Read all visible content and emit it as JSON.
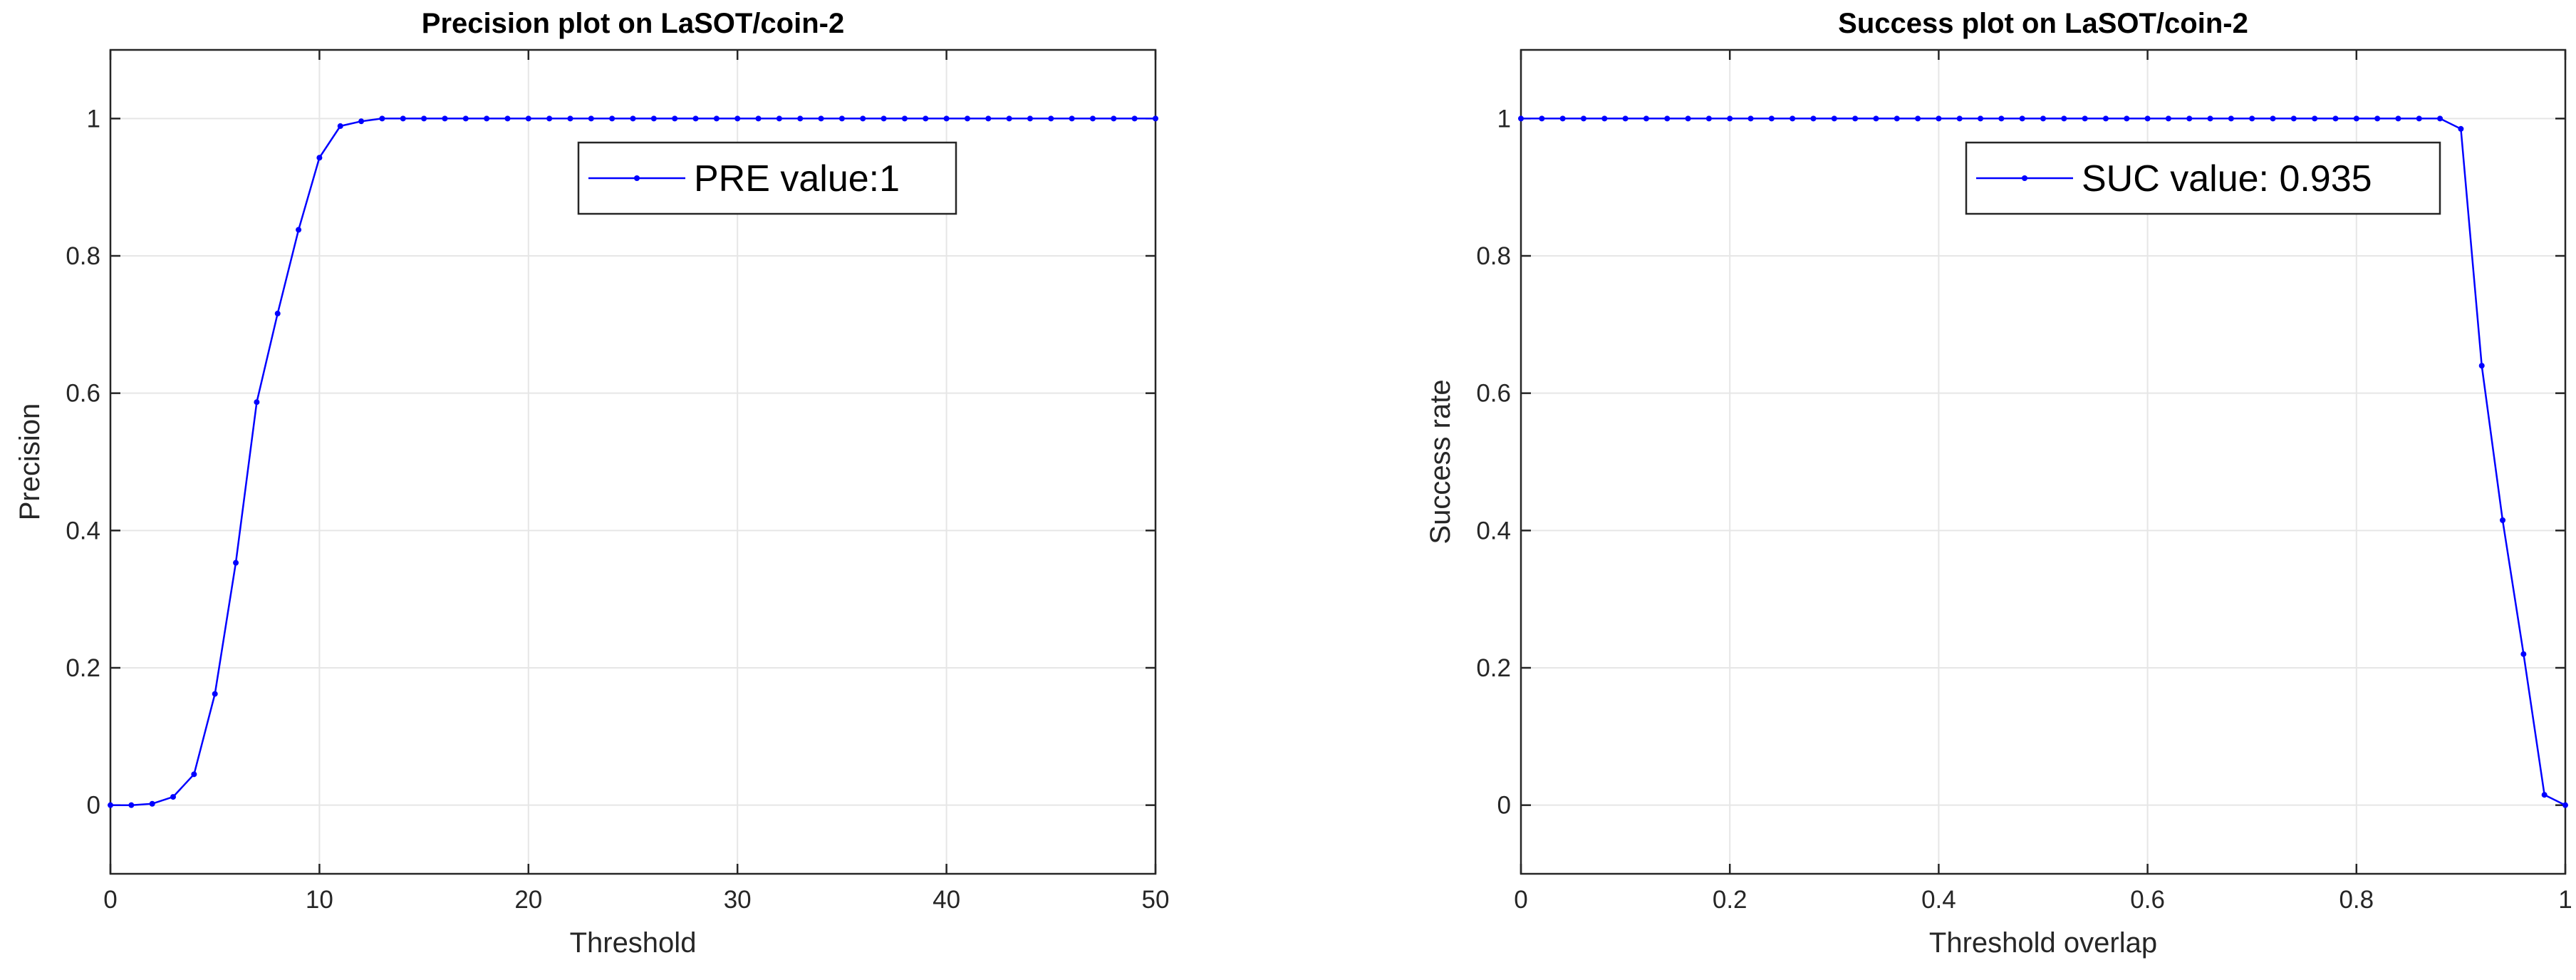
{
  "chart_data": [
    {
      "type": "line",
      "title": "Precision plot on LaSOT/coin-2",
      "xlabel": "Threshold",
      "ylabel": "Precision",
      "xlim": [
        0,
        50
      ],
      "ylim": [
        -0.1,
        1.1
      ],
      "xticks": [
        "0",
        "10",
        "20",
        "30",
        "40",
        "50"
      ],
      "yticks": [
        "0",
        "0.2",
        "0.4",
        "0.6",
        "0.8",
        "1"
      ],
      "xtick_values": [
        0,
        10,
        20,
        30,
        40,
        50
      ],
      "ytick_values": [
        0,
        0.2,
        0.4,
        0.6,
        0.8,
        1
      ],
      "grid": true,
      "legend_position": "upper-center",
      "color": "#0000ff",
      "series": [
        {
          "name": "PRE value:1",
          "x": [
            0,
            1,
            2,
            3,
            4,
            5,
            6,
            7,
            8,
            9,
            10,
            11,
            12,
            13,
            14,
            15,
            16,
            17,
            18,
            19,
            20,
            21,
            22,
            23,
            24,
            25,
            26,
            27,
            28,
            29,
            30,
            31,
            32,
            33,
            34,
            35,
            36,
            37,
            38,
            39,
            40,
            41,
            42,
            43,
            44,
            45,
            46,
            47,
            48,
            49,
            50
          ],
          "y": [
            0,
            0,
            0.002,
            0.012,
            0.045,
            0.162,
            0.353,
            0.587,
            0.716,
            0.838,
            0.943,
            0.989,
            0.996,
            1,
            1,
            1,
            1,
            1,
            1,
            1,
            1,
            1,
            1,
            1,
            1,
            1,
            1,
            1,
            1,
            1,
            1,
            1,
            1,
            1,
            1,
            1,
            1,
            1,
            1,
            1,
            1,
            1,
            1,
            1,
            1,
            1,
            1,
            1,
            1,
            1,
            1
          ]
        }
      ]
    },
    {
      "type": "line",
      "title": "Success plot on LaSOT/coin-2",
      "xlabel": "Threshold overlap",
      "ylabel": "Success rate",
      "xlim": [
        0,
        1
      ],
      "ylim": [
        -0.1,
        1.1
      ],
      "xticks": [
        "0",
        "0.2",
        "0.4",
        "0.6",
        "0.8",
        "1"
      ],
      "yticks": [
        "0",
        "0.2",
        "0.4",
        "0.6",
        "0.8",
        "1"
      ],
      "xtick_values": [
        0,
        0.2,
        0.4,
        0.6,
        0.8,
        1
      ],
      "ytick_values": [
        0,
        0.2,
        0.4,
        0.6,
        0.8,
        1
      ],
      "grid": true,
      "legend_position": "upper-right",
      "color": "#0000ff",
      "series": [
        {
          "name": "SUC value: 0.935",
          "x": [
            0,
            0.02,
            0.04,
            0.06,
            0.08,
            0.1,
            0.12,
            0.14,
            0.16,
            0.18,
            0.2,
            0.22,
            0.24,
            0.26,
            0.28,
            0.3,
            0.32,
            0.34,
            0.36,
            0.38,
            0.4,
            0.42,
            0.44,
            0.46,
            0.48,
            0.5,
            0.52,
            0.54,
            0.56,
            0.58,
            0.6,
            0.62,
            0.64,
            0.66,
            0.68,
            0.7,
            0.72,
            0.74,
            0.76,
            0.78,
            0.8,
            0.82,
            0.84,
            0.86,
            0.88,
            0.9,
            0.92,
            0.94,
            0.96,
            0.98,
            1.0
          ],
          "y": [
            1,
            1,
            1,
            1,
            1,
            1,
            1,
            1,
            1,
            1,
            1,
            1,
            1,
            1,
            1,
            1,
            1,
            1,
            1,
            1,
            1,
            1,
            1,
            1,
            1,
            1,
            1,
            1,
            1,
            1,
            1,
            1,
            1,
            1,
            1,
            1,
            1,
            1,
            1,
            1,
            1,
            1,
            1,
            1,
            1,
            0.985,
            0.64,
            0.415,
            0.22,
            0.015,
            0
          ]
        }
      ]
    }
  ]
}
